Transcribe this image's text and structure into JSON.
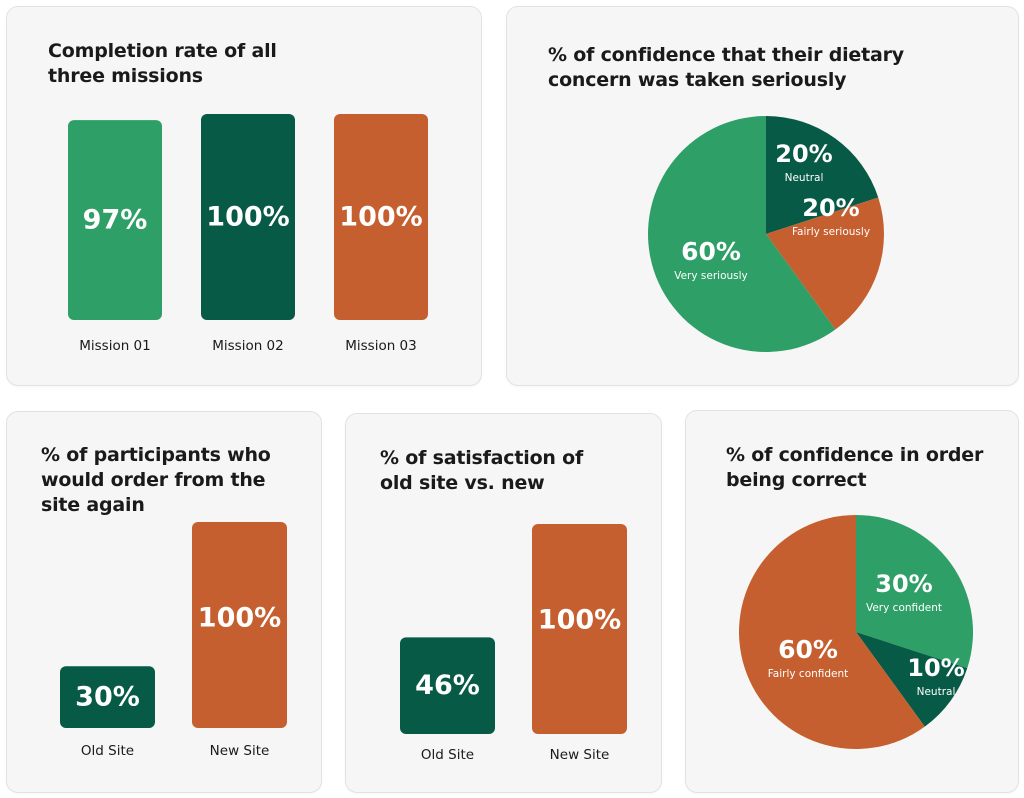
{
  "colors": {
    "light_green": "#2e9f66",
    "dark_green": "#075a46",
    "orange": "#c65f2f"
  },
  "chart_data": [
    {
      "type": "bar",
      "title": "Completion rate of all three missions",
      "title_lines": [
        "Completion rate of all",
        "three missions"
      ],
      "categories": [
        "Mission 01",
        "Mission 02",
        "Mission 03"
      ],
      "values": [
        97,
        100,
        100
      ],
      "value_labels": [
        "97%",
        "100%",
        "100%"
      ],
      "colors": [
        "#2e9f66",
        "#075a46",
        "#c65f2f"
      ],
      "ylim": [
        0,
        100
      ]
    },
    {
      "type": "pie",
      "title": "% of confidence that their dietary concern was taken seriously",
      "title_lines": [
        "% of confidence that their dietary",
        "concern was taken seriously"
      ],
      "slices": [
        {
          "label": "Neutral",
          "value": 20,
          "value_label": "20%",
          "color": "#075a46"
        },
        {
          "label": "Fairly seriously",
          "value": 20,
          "value_label": "20%",
          "color": "#c65f2f"
        },
        {
          "label": "Very seriously",
          "value": 60,
          "value_label": "60%",
          "color": "#2e9f66"
        }
      ]
    },
    {
      "type": "bar",
      "title": "% of participants who would order from the site again",
      "title_lines": [
        "% of participants who",
        "would order from the",
        "site again"
      ],
      "categories": [
        "Old Site",
        "New Site"
      ],
      "values": [
        30,
        100
      ],
      "value_labels": [
        "30%",
        "100%"
      ],
      "colors": [
        "#075a46",
        "#c65f2f"
      ],
      "ylim": [
        0,
        100
      ]
    },
    {
      "type": "bar",
      "title": "% of satisfaction of old site vs. new",
      "title_lines": [
        "% of satisfaction of",
        "old site vs. new"
      ],
      "categories": [
        "Old Site",
        "New Site"
      ],
      "values": [
        46,
        100
      ],
      "value_labels": [
        "46%",
        "100%"
      ],
      "colors": [
        "#075a46",
        "#c65f2f"
      ],
      "ylim": [
        0,
        100
      ]
    },
    {
      "type": "pie",
      "title": "% of confidence in order being correct",
      "title_lines": [
        "% of confidence in order",
        "being correct"
      ],
      "slices": [
        {
          "label": "Very confident",
          "value": 30,
          "value_label": "30%",
          "color": "#2e9f66"
        },
        {
          "label": "Neutral",
          "value": 10,
          "value_label": "10%",
          "color": "#075a46"
        },
        {
          "label": "Fairly confident",
          "value": 60,
          "value_label": "60%",
          "color": "#c65f2f"
        }
      ]
    }
  ]
}
